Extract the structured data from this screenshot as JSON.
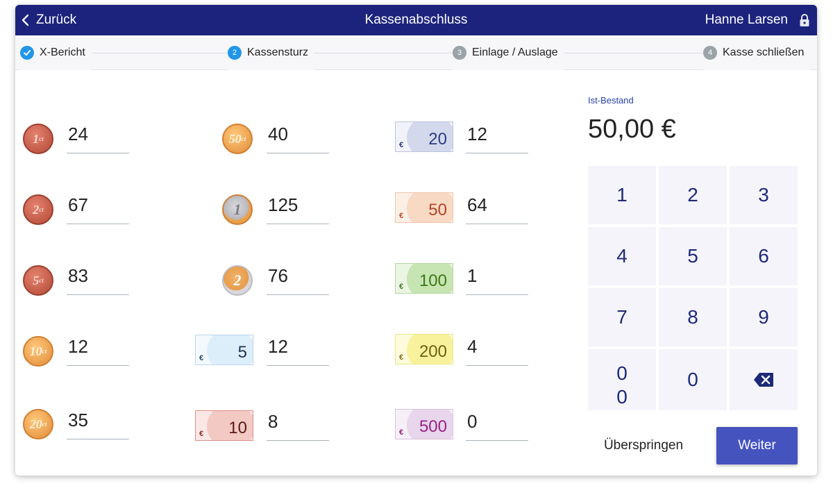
{
  "header": {
    "back_label": "Zurück",
    "title": "Kassenabschluss",
    "user": "Hanne Larsen"
  },
  "steps": [
    {
      "number": "",
      "label": "X-Bericht",
      "state": "done"
    },
    {
      "number": "2",
      "label": "Kassensturz",
      "state": "active"
    },
    {
      "number": "3",
      "label": "Einlage / Auslage",
      "state": "pending"
    },
    {
      "number": "4",
      "label": "Kasse schließen",
      "state": "pending"
    }
  ],
  "denominations": {
    "c1": {
      "coin_label": "1",
      "unit": "ct",
      "count": "24"
    },
    "c2": {
      "coin_label": "2",
      "unit": "ct",
      "count": "67"
    },
    "c5": {
      "coin_label": "5",
      "unit": "ct",
      "count": "83"
    },
    "c10": {
      "coin_label": "10",
      "unit": "ct",
      "count": "12"
    },
    "c20": {
      "coin_label": "20",
      "unit": "ct",
      "count": "35"
    },
    "c50": {
      "coin_label": "50",
      "unit": "ct",
      "count": "40"
    },
    "e1": {
      "coin_label": "1",
      "count": "125"
    },
    "e2": {
      "coin_label": "2",
      "count": "76"
    },
    "n5": {
      "note_label": "5",
      "currency": "€",
      "count": "12"
    },
    "n10": {
      "note_label": "10",
      "currency": "€",
      "count": "8"
    },
    "n20": {
      "note_label": "20",
      "currency": "€",
      "count": "12"
    },
    "n50": {
      "note_label": "50",
      "currency": "€",
      "count": "64"
    },
    "n100": {
      "note_label": "100",
      "currency": "€",
      "count": "1"
    },
    "n200": {
      "note_label": "200",
      "currency": "€",
      "count": "4"
    },
    "n500": {
      "note_label": "500",
      "currency": "€",
      "count": "0"
    }
  },
  "stock": {
    "label": "Ist-Bestand",
    "value": "50,00 €"
  },
  "keypad": {
    "k1": "1",
    "k2": "2",
    "k3": "3",
    "k4": "4",
    "k5": "5",
    "k6": "6",
    "k7": "7",
    "k8": "8",
    "k9": "9",
    "k00a": "0",
    "k00b": "0",
    "k0": "0"
  },
  "actions": {
    "skip_label": "Überspringen",
    "next_label": "Weiter"
  },
  "colors": {
    "header_bg": "#1c237d",
    "step_active": "#2196e8",
    "step_pending": "#9aa3a8",
    "primary_button": "#4553bf",
    "keypad_text": "#1d2a78"
  }
}
